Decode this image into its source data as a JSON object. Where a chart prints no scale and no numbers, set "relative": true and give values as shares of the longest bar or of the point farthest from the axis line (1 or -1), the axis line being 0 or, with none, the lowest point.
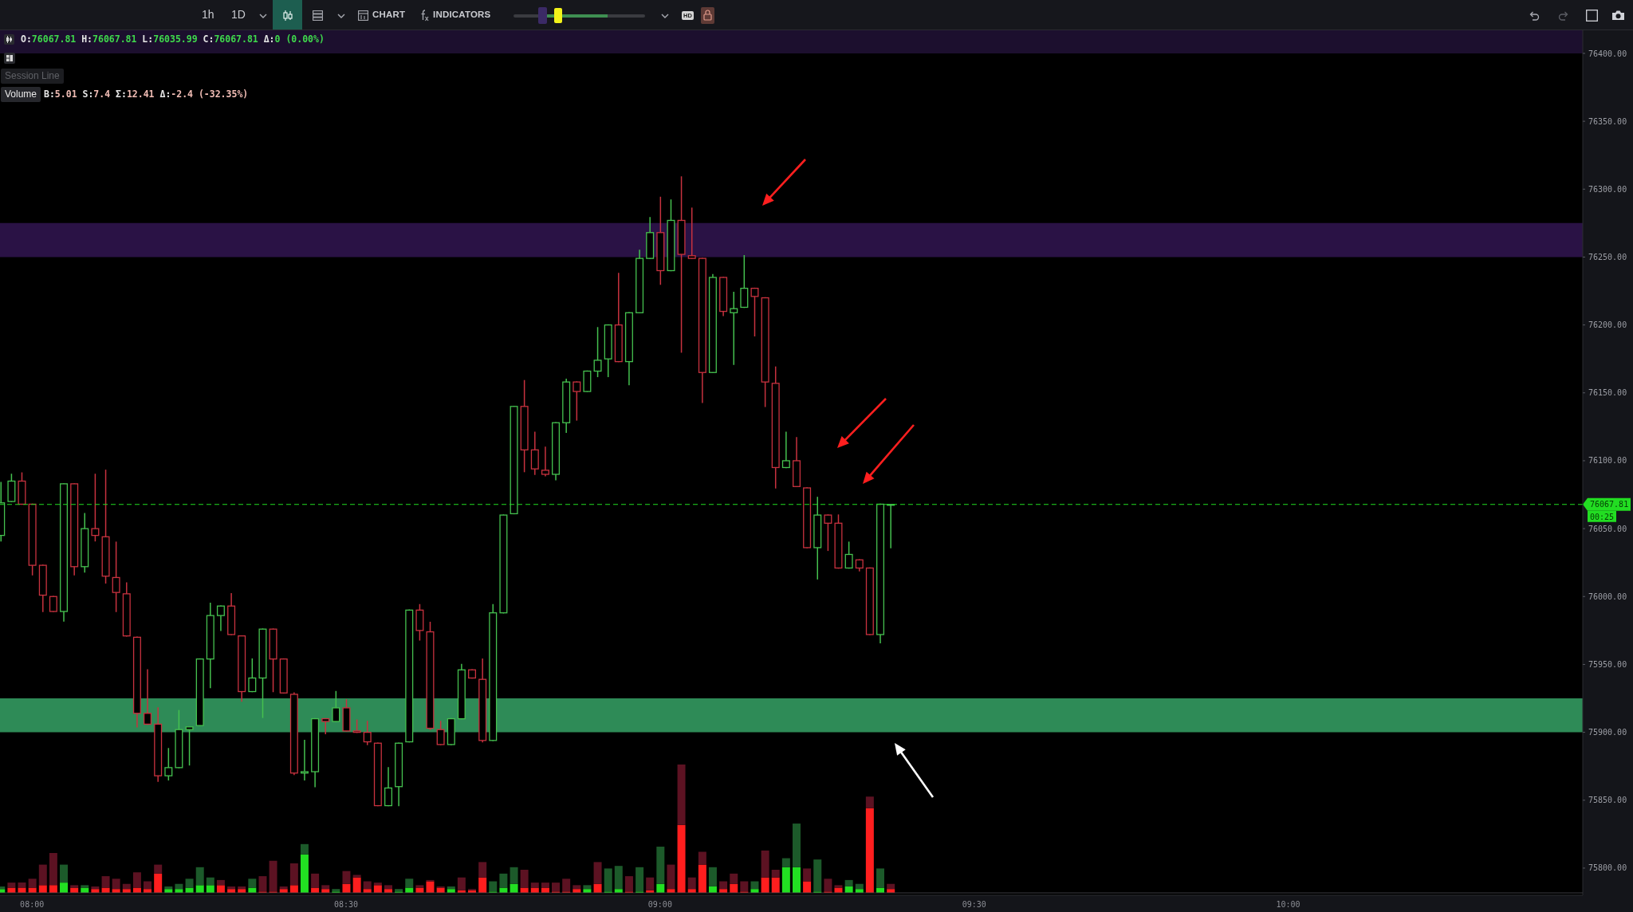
{
  "chart_data": [
    {
      "type": "candlestick",
      "x": [
        7.95,
        7.9667,
        7.9833,
        8,
        8.0167,
        8.0333,
        8.05,
        8.0667,
        8.0833,
        8.1,
        8.1167,
        8.1333,
        8.15,
        8.1667,
        8.1833,
        8.2,
        8.2167,
        8.2333,
        8.25,
        8.2667,
        8.2833,
        8.3,
        8.3167,
        8.3333,
        8.35,
        8.3667,
        8.3833,
        8.4,
        8.4167,
        8.4333,
        8.45,
        8.4667,
        8.4833,
        8.5,
        8.5167,
        8.5333,
        8.55,
        8.5667,
        8.5833,
        8.6,
        8.6167,
        8.6333,
        8.65,
        8.6667,
        8.6833,
        8.7,
        8.7167,
        8.7333,
        8.75,
        8.7667,
        8.7833,
        8.8,
        8.8167,
        8.8333,
        8.85,
        8.8667,
        8.8833,
        8.9,
        8.9167,
        8.9333,
        8.95,
        8.9667,
        8.9833,
        9,
        9.0167,
        9.0333,
        9.05,
        9.0667,
        9.0833,
        9.1,
        9.1167,
        9.1333,
        9.15,
        9.1667,
        9.1833,
        9.2,
        9.2167,
        9.2333,
        9.25,
        9.2667,
        9.2833,
        9.3,
        9.3167,
        9.3333,
        9.35,
        9.3667
      ],
      "ohlc": [
        [
          76045,
          76084,
          76041,
          76069
        ],
        [
          76070,
          76090,
          76070,
          76085
        ],
        [
          76085,
          76091,
          76068,
          76068
        ],
        [
          76068,
          76068,
          76016,
          76023
        ],
        [
          76023,
          76023,
          75989,
          76001
        ],
        [
          76000,
          76000,
          75989,
          75989
        ],
        [
          75989,
          76083,
          75982,
          76083
        ],
        [
          76083,
          76083,
          76016,
          76022
        ],
        [
          76022,
          76061,
          76018,
          76050
        ],
        [
          76050,
          76090,
          76041,
          76045
        ],
        [
          76044,
          76093,
          76010,
          76015
        ],
        [
          76014,
          76040,
          75989,
          76003
        ],
        [
          76002,
          76010,
          75971,
          75971
        ],
        [
          75970,
          75970,
          75904,
          75914
        ],
        [
          75914,
          75946,
          75906,
          75906
        ],
        [
          75906,
          75918,
          75864,
          75868
        ],
        [
          75868,
          75888,
          75865,
          75874
        ],
        [
          75874,
          75916,
          75874,
          75902
        ],
        [
          75902,
          75904,
          75876,
          75904
        ],
        [
          75905,
          75954,
          75905,
          75954
        ],
        [
          75954,
          75995,
          75933,
          75986
        ],
        [
          75986,
          75993,
          75975,
          75993
        ],
        [
          75993,
          76002,
          75972,
          75972
        ],
        [
          75971,
          75971,
          75923,
          75930
        ],
        [
          75930,
          75954,
          75930,
          75940
        ],
        [
          75940,
          75976,
          75911,
          75976
        ],
        [
          75976,
          75976,
          75930,
          75954
        ],
        [
          75954,
          75954,
          75929,
          75929
        ],
        [
          75928,
          75929,
          75869,
          75870
        ],
        [
          75870,
          75894,
          75865,
          75871
        ],
        [
          75871,
          75910,
          75860,
          75910
        ],
        [
          75910,
          75910,
          75899,
          75908
        ],
        [
          75908,
          75930,
          75908,
          75918
        ],
        [
          75918,
          75924,
          75901,
          75901
        ],
        [
          75901,
          75909,
          75900,
          75900
        ],
        [
          75900,
          75908,
          75891,
          75893
        ],
        [
          75892,
          75892,
          75846,
          75846
        ],
        [
          75846,
          75874,
          75846,
          75859
        ],
        [
          75860,
          75892,
          75846,
          75892
        ],
        [
          75893,
          75990,
          75893,
          75990
        ],
        [
          75990,
          75994,
          75968,
          75975
        ],
        [
          75974,
          75981,
          75902,
          75903
        ],
        [
          75902,
          75908,
          75891,
          75891
        ],
        [
          75891,
          75910,
          75891,
          75910
        ],
        [
          75910,
          75950,
          75910,
          75946
        ],
        [
          75946,
          75946,
          75940,
          75940
        ],
        [
          75939,
          75954,
          75893,
          75894
        ],
        [
          75894,
          75994,
          75894,
          75988
        ],
        [
          75988,
          76060,
          75988,
          76060
        ],
        [
          76061,
          76140,
          76061,
          76140
        ],
        [
          76140,
          76159,
          76092,
          76108
        ],
        [
          76108,
          76121,
          76090,
          76094
        ],
        [
          76093,
          76110,
          76089,
          76090
        ],
        [
          76090,
          76128,
          76086,
          76128
        ],
        [
          76128,
          76160,
          76121,
          76158
        ],
        [
          76158,
          76158,
          76130,
          76151
        ],
        [
          76151,
          76166,
          76151,
          76166
        ],
        [
          76166,
          76198,
          76162,
          76174
        ],
        [
          76175,
          76200,
          76162,
          76200
        ],
        [
          76200,
          76238,
          76173,
          76173
        ],
        [
          76173,
          76209,
          76156,
          76209
        ],
        [
          76209,
          76255,
          76209,
          76249
        ],
        [
          76249,
          76279,
          76249,
          76268
        ],
        [
          76268,
          76294,
          76230,
          76240
        ],
        [
          76240,
          76292,
          76240,
          76277
        ],
        [
          76277,
          76309,
          76180,
          76252
        ],
        [
          76251,
          76286,
          76249,
          76249
        ],
        [
          76249,
          76249,
          76143,
          76165
        ],
        [
          76165,
          76237,
          76165,
          76235
        ],
        [
          76235,
          76235,
          76207,
          76210
        ],
        [
          76209,
          76224,
          76171,
          76212
        ],
        [
          76213,
          76251,
          76213,
          76227
        ],
        [
          76227,
          76227,
          76192,
          76221
        ],
        [
          76220,
          76220,
          76140,
          76158
        ],
        [
          76157,
          76169,
          76080,
          76095
        ],
        [
          76095,
          76121,
          76095,
          76100
        ],
        [
          76100,
          76117,
          76081,
          76081
        ],
        [
          76080,
          76080,
          76036,
          76036
        ],
        [
          76036,
          76073,
          76013,
          76060
        ],
        [
          76060,
          76060,
          76034,
          76054
        ],
        [
          76054,
          76060,
          76021,
          76021
        ],
        [
          76021,
          76040,
          76021,
          76031
        ],
        [
          76027,
          76027,
          76019,
          76021
        ],
        [
          76021,
          76021,
          75972,
          75972
        ],
        [
          75972,
          76068,
          75966,
          76068
        ],
        [
          76067.81,
          76067.81,
          76035.99,
          76067.81
        ]
      ],
      "colors": [
        "#45c14f",
        "#45c14f",
        "#c8323f",
        "#c8323f",
        "#c8323f",
        "#c8323f",
        "#45c14f",
        "#c8323f",
        "#45c14f",
        "#c8323f",
        "#c8323f",
        "#c8323f",
        "#c8323f",
        "#c8323f",
        "#c8323f",
        "#c8323f",
        "#45c14f",
        "#45c14f",
        "#45c14f",
        "#45c14f",
        "#45c14f",
        "#45c14f",
        "#c8323f",
        "#c8323f",
        "#45c14f",
        "#45c14f",
        "#c8323f",
        "#c8323f",
        "#c8323f",
        "#45c14f",
        "#45c14f",
        "#c8323f",
        "#45c14f",
        "#c8323f",
        "#c8323f",
        "#c8323f",
        "#c8323f",
        "#45c14f",
        "#45c14f",
        "#45c14f",
        "#c8323f",
        "#c8323f",
        "#c8323f",
        "#45c14f",
        "#45c14f",
        "#c8323f",
        "#c8323f",
        "#45c14f",
        "#45c14f",
        "#45c14f",
        "#c8323f",
        "#c8323f",
        "#c8323f",
        "#45c14f",
        "#45c14f",
        "#c8323f",
        "#45c14f",
        "#45c14f",
        "#45c14f",
        "#c8323f",
        "#45c14f",
        "#45c14f",
        "#45c14f",
        "#c8323f",
        "#45c14f",
        "#c8323f",
        "#c8323f",
        "#c8323f",
        "#45c14f",
        "#c8323f",
        "#45c14f",
        "#45c14f",
        "#c8323f",
        "#c8323f",
        "#c8323f",
        "#45c14f",
        "#c8323f",
        "#c8323f",
        "#45c14f",
        "#c8323f",
        "#c8323f",
        "#45c14f",
        "#c8323f",
        "#c8323f",
        "#45c14f",
        "#45c14f"
      ],
      "xlim": [
        7.949,
        10.469
      ],
      "xticks": [
        {
          "value": 8,
          "label": "08:00"
        },
        {
          "value": 8.5,
          "label": "08:30"
        },
        {
          "value": 9,
          "label": "09:00"
        },
        {
          "value": 9.5,
          "label": "09:30"
        },
        {
          "value": 10,
          "label": "10:00"
        }
      ],
      "ylim": [
        75780,
        76417
      ],
      "yticks": [
        {
          "value": 75800,
          "label": "75800.00"
        },
        {
          "value": 75850,
          "label": "75850.00"
        },
        {
          "value": 75900,
          "label": "75900.00"
        },
        {
          "value": 75950,
          "label": "75950.00"
        },
        {
          "value": 76000,
          "label": "76000.00"
        },
        {
          "value": 76050,
          "label": "76050.00"
        },
        {
          "value": 76100,
          "label": "76100.00"
        },
        {
          "value": 76150,
          "label": "76150.00"
        },
        {
          "value": 76200,
          "label": "76200.00"
        },
        {
          "value": 76250,
          "label": "76250.00"
        },
        {
          "value": 76300,
          "label": "76300.00"
        },
        {
          "value": 76350,
          "label": "76350.00"
        },
        {
          "value": 76400,
          "label": "76400.00"
        }
      ],
      "ref_lines": [
        {
          "axis": "y",
          "value": 76067.81,
          "label": "76067.81",
          "color": "#22dd22",
          "line_style": "dashed"
        }
      ],
      "bands": [
        {
          "axis": "y",
          "from": 76400,
          "to": 76417,
          "color": "#1c0f2e"
        },
        {
          "axis": "y",
          "from": 76250,
          "to": 76275,
          "color": "#2a1245"
        },
        {
          "axis": "y",
          "from": 75900,
          "to": 75925,
          "color": "#2e8b57"
        }
      ],
      "annotations": [
        "O:76067.81 H:76067.81 L:76035.99 C:76067.81 Δ:0 (0.00%)",
        "Session Line",
        "Volume",
        "B:5.01 S:7.4 Σ:12.41 Δ:-2.4 (-32.35%)",
        "00:25",
        "1h",
        "1D",
        "CHART",
        "INDICATORS",
        "HD"
      ]
    },
    {
      "type": "bar",
      "stacked": true,
      "relative": true,
      "tick_labels": false,
      "x": [
        7.95,
        7.9667,
        7.9833,
        8,
        8.0167,
        8.0333,
        8.05,
        8.0667,
        8.0833,
        8.1,
        8.1167,
        8.1333,
        8.15,
        8.1667,
        8.1833,
        8.2,
        8.2167,
        8.2333,
        8.25,
        8.2667,
        8.2833,
        8.3,
        8.3167,
        8.3333,
        8.35,
        8.3667,
        8.3833,
        8.4,
        8.4167,
        8.4333,
        8.45,
        8.4667,
        8.4833,
        8.5,
        8.5167,
        8.5333,
        8.55,
        8.5667,
        8.5833,
        8.6,
        8.6167,
        8.6333,
        8.65,
        8.6667,
        8.6833,
        8.7,
        8.7167,
        8.7333,
        8.75,
        8.7667,
        8.7833,
        8.8,
        8.8167,
        8.8333,
        8.85,
        8.8667,
        8.8833,
        8.9,
        8.9167,
        8.9333,
        8.95,
        8.9667,
        8.9833,
        9,
        9.0167,
        9.0333,
        9.05,
        9.0667,
        9.0833,
        9.1,
        9.1167,
        9.1333,
        9.15,
        9.1667,
        9.1833,
        9.2,
        9.2167,
        9.2333,
        9.25,
        9.2667,
        9.2833,
        9.3,
        9.3167,
        9.3333,
        9.35,
        9.3667
      ],
      "xlim": [
        7.949,
        10.469
      ],
      "series": [
        {
          "values": [
            0.03,
            0.04,
            0.04,
            0.04,
            0.06,
            0.06,
            0.08,
            0.04,
            0.04,
            0.03,
            0.04,
            0.03,
            0.03,
            0.04,
            0.03,
            0.15,
            0.03,
            0.03,
            0.04,
            0.06,
            0.06,
            0.06,
            0.03,
            0.03,
            0.04,
            0.01,
            0.01,
            0.03,
            0.06,
            0.3,
            0.04,
            0.03,
            0.01,
            0.07,
            0.12,
            0.03,
            0.06,
            0.03,
            0.01,
            0.04,
            0.04,
            0.09,
            0.04,
            0.03,
            0.02,
            0.02,
            0.12,
            0.01,
            0.04,
            0.07,
            0.04,
            0.04,
            0.04,
            0.01,
            0.01,
            0.03,
            0.03,
            0.07,
            0.01,
            0.03,
            0.01,
            0.01,
            0.02,
            0.07,
            0.03,
            0.53,
            0.03,
            0.22,
            0.05,
            0.03,
            0.07,
            0.01,
            0.03,
            0.12,
            0.12,
            0.2,
            0.2,
            0.09,
            0.01,
            0.01,
            0.04,
            0.05,
            0.03,
            0.66,
            0.04,
            0.03
          ],
          "colors": [
            "#22e022",
            "#ff1e1e",
            "#ff1e1e",
            "#ff1e1e",
            "#ff1e1e",
            "#ff1e1e",
            "#22e022",
            "#ff1e1e",
            "#22e022",
            "#ff1e1e",
            "#ff1e1e",
            "#ff1e1e",
            "#ff1e1e",
            "#ff1e1e",
            "#ff1e1e",
            "#ff1e1e",
            "#22e022",
            "#22e022",
            "#22e022",
            "#22e022",
            "#22e022",
            "#ff1e1e",
            "#ff1e1e",
            "#ff1e1e",
            "#22e022",
            "#ff1e1e",
            "#ff1e1e",
            "#ff1e1e",
            "#ff1e1e",
            "#22e022",
            "#ff1e1e",
            "#ff1e1e",
            "#22e022",
            "#ff1e1e",
            "#ff1e1e",
            "#ff1e1e",
            "#ff1e1e",
            "#ff1e1e",
            "#22e022",
            "#22e022",
            "#ff1e1e",
            "#ff1e1e",
            "#ff1e1e",
            "#22e022",
            "#ff1e1e",
            "#ff1e1e",
            "#ff1e1e",
            "#22e022",
            "#22e022",
            "#22e022",
            "#ff1e1e",
            "#ff1e1e",
            "#ff1e1e",
            "#ff1e1e",
            "#ff1e1e",
            "#ff1e1e",
            "#22e022",
            "#ff1e1e",
            "#22e022",
            "#22e022",
            "#ff1e1e",
            "#22e022",
            "#ff1e1e",
            "#22e022",
            "#ff1e1e",
            "#ff1e1e",
            "#ff1e1e",
            "#ff1e1e",
            "#22e022",
            "#ff1e1e",
            "#ff1e1e",
            "#ff1e1e",
            "#22e022",
            "#ff1e1e",
            "#ff1e1e",
            "#22e022",
            "#22e022",
            "#ff1e1e",
            "#22e022",
            "#ff1e1e",
            "#ff1e1e",
            "#22e022",
            "#22e022",
            "#ff1e1e",
            "#22e022",
            "#ff1e1e"
          ]
        },
        {
          "values": [
            0.02,
            0.04,
            0.04,
            0.07,
            0.16,
            0.25,
            0.14,
            0.02,
            0.02,
            0.02,
            0.09,
            0.08,
            0.04,
            0.12,
            0.06,
            0.07,
            0.02,
            0.04,
            0.07,
            0.14,
            0.06,
            0.04,
            0.02,
            0.02,
            0.07,
            0.12,
            0.24,
            0.02,
            0.17,
            0.08,
            0.11,
            0.03,
            0.02,
            0.1,
            0.02,
            0.06,
            0.02,
            0.03,
            0.02,
            0.07,
            0.02,
            0.01,
            0.01,
            0.02,
            0.1,
            0.01,
            0.12,
            0.08,
            0.11,
            0.13,
            0.14,
            0.04,
            0.04,
            0.07,
            0.1,
            0.03,
            0.03,
            0.17,
            0.18,
            0.18,
            0.12,
            0.19,
            0.1,
            0.29,
            0.19,
            0.47,
            0.09,
            0.1,
            0.15,
            0.06,
            0.08,
            0.08,
            0.06,
            0.21,
            0.06,
            0.07,
            0.34,
            0.1,
            0.25,
            0.1,
            0.02,
            0.05,
            0.04,
            0.09,
            0.15,
            0.04
          ],
          "colors": [
            "#1c5a2a",
            "#5c1222",
            "#5c1222",
            "#5c1222",
            "#5c1222",
            "#5c1222",
            "#1c5a2a",
            "#5c1222",
            "#1c5a2a",
            "#5c1222",
            "#5c1222",
            "#5c1222",
            "#5c1222",
            "#5c1222",
            "#5c1222",
            "#5c1222",
            "#1c5a2a",
            "#1c5a2a",
            "#1c5a2a",
            "#1c5a2a",
            "#1c5a2a",
            "#5c1222",
            "#5c1222",
            "#5c1222",
            "#1c5a2a",
            "#5c1222",
            "#5c1222",
            "#5c1222",
            "#5c1222",
            "#1c5a2a",
            "#5c1222",
            "#5c1222",
            "#1c5a2a",
            "#5c1222",
            "#5c1222",
            "#5c1222",
            "#5c1222",
            "#5c1222",
            "#1c5a2a",
            "#1c5a2a",
            "#5c1222",
            "#5c1222",
            "#5c1222",
            "#1c5a2a",
            "#5c1222",
            "#5c1222",
            "#5c1222",
            "#1c5a2a",
            "#1c5a2a",
            "#1c5a2a",
            "#5c1222",
            "#5c1222",
            "#5c1222",
            "#5c1222",
            "#5c1222",
            "#5c1222",
            "#1c5a2a",
            "#5c1222",
            "#1c5a2a",
            "#1c5a2a",
            "#5c1222",
            "#1c5a2a",
            "#5c1222",
            "#1c5a2a",
            "#5c1222",
            "#5c1222",
            "#5c1222",
            "#5c1222",
            "#1c5a2a",
            "#5c1222",
            "#5c1222",
            "#5c1222",
            "#1c5a2a",
            "#5c1222",
            "#5c1222",
            "#1c5a2a",
            "#1c5a2a",
            "#5c1222",
            "#1c5a2a",
            "#5c1222",
            "#5c1222",
            "#1c5a2a",
            "#1c5a2a",
            "#5c1222",
            "#1c5a2a",
            "#5c1222"
          ]
        }
      ]
    }
  ]
}
